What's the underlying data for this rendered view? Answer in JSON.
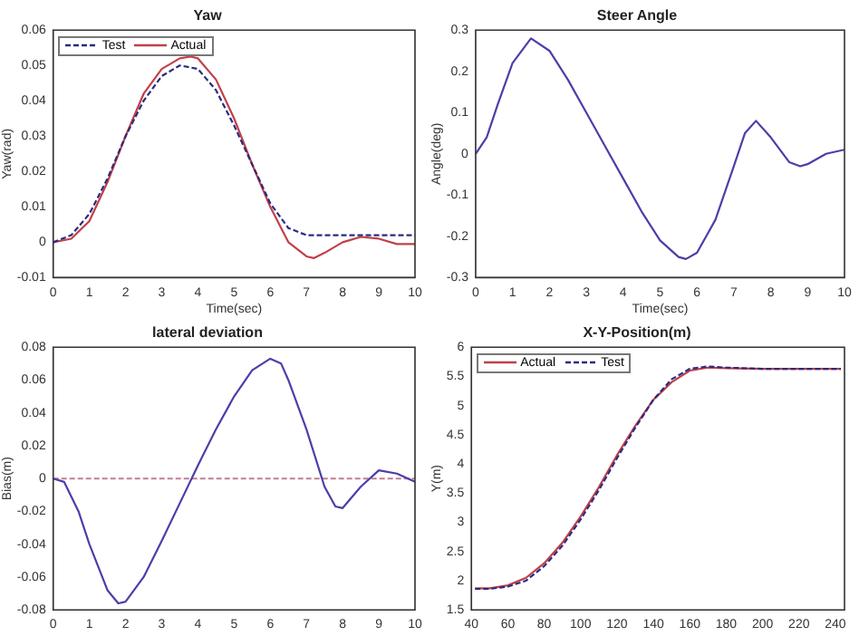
{
  "chart_data": [
    {
      "type": "line",
      "title": "Yaw",
      "xlabel": "Time(sec)",
      "ylabel": "Yaw(rad)",
      "xlim": [
        0,
        10
      ],
      "xticks": [
        0,
        1,
        2,
        3,
        4,
        5,
        6,
        7,
        8,
        9,
        10
      ],
      "ylim": [
        -0.01,
        0.06
      ],
      "yticks": [
        -0.01,
        0,
        0.01,
        0.02,
        0.03,
        0.04,
        0.05,
        0.06
      ],
      "legend": "top left",
      "grid": false,
      "marker": "none",
      "series": [
        {
          "name": "Test",
          "color": "#2b2b80",
          "line_style": "dashed",
          "x": [
            0,
            0.5,
            1,
            1.5,
            2,
            2.5,
            3,
            3.5,
            4,
            4.5,
            5,
            5.5,
            6,
            6.5,
            7,
            8,
            9,
            10
          ],
          "values": [
            0,
            0.002,
            0.008,
            0.018,
            0.03,
            0.04,
            0.047,
            0.05,
            0.049,
            0.043,
            0.033,
            0.022,
            0.011,
            0.004,
            0.002,
            0.002,
            0.002,
            0.002
          ]
        },
        {
          "name": "Actual",
          "color": "#c0404a",
          "line_style": "solid",
          "x": [
            0,
            0.5,
            1,
            1.5,
            2,
            2.5,
            3,
            3.5,
            3.8,
            4,
            4.5,
            5,
            5.5,
            6,
            6.5,
            7,
            7.2,
            7.5,
            8,
            8.5,
            9,
            9.5,
            10
          ],
          "values": [
            0,
            0.001,
            0.006,
            0.017,
            0.03,
            0.042,
            0.049,
            0.052,
            0.0525,
            0.052,
            0.046,
            0.035,
            0.022,
            0.01,
            0,
            -0.004,
            -0.0045,
            -0.003,
            0,
            0.0015,
            0.001,
            -0.0005,
            -0.0005
          ]
        }
      ]
    },
    {
      "type": "line",
      "title": "Steer Angle",
      "xlabel": "Time(sec)",
      "ylabel": "Angle(deg)",
      "xlim": [
        0,
        10
      ],
      "xticks": [
        0,
        1,
        2,
        3,
        4,
        5,
        6,
        7,
        8,
        9,
        10
      ],
      "ylim": [
        -0.3,
        0.3
      ],
      "yticks": [
        -0.3,
        -0.2,
        -0.1,
        0,
        0.1,
        0.2,
        0.3
      ],
      "grid": false,
      "marker": "none",
      "series": [
        {
          "color": "#4a3fa8",
          "line_style": "solid",
          "x": [
            0,
            0.3,
            0.6,
            1,
            1.5,
            2,
            2.5,
            3,
            3.5,
            4,
            4.5,
            5,
            5.5,
            5.7,
            6,
            6.5,
            7,
            7.3,
            7.6,
            8,
            8.5,
            8.8,
            9,
            9.5,
            10
          ],
          "values": [
            0,
            0.04,
            0.12,
            0.22,
            0.28,
            0.25,
            0.18,
            0.1,
            0.02,
            -0.06,
            -0.14,
            -0.21,
            -0.25,
            -0.255,
            -0.24,
            -0.16,
            -0.03,
            0.05,
            0.08,
            0.04,
            -0.02,
            -0.03,
            -0.025,
            0,
            0.01
          ]
        }
      ]
    },
    {
      "type": "line",
      "title": "lateral deviation",
      "ylabel": "Bias(m)",
      "xlim": [
        0,
        10
      ],
      "xticks": [
        0,
        1,
        2,
        3,
        4,
        5,
        6,
        7,
        8,
        9,
        10
      ],
      "ylim": [
        -0.08,
        0.08
      ],
      "yticks": [
        -0.08,
        -0.06,
        -0.04,
        -0.02,
        0,
        0.02,
        0.04,
        0.06,
        0.08
      ],
      "grid": false,
      "marker": "none",
      "ref_lines": [
        {
          "axis": "y",
          "value": 0,
          "color": "#c08090",
          "line_style": "dashed"
        }
      ],
      "series": [
        {
          "color": "#4a3fa8",
          "line_style": "solid",
          "x": [
            0,
            0.3,
            0.7,
            1,
            1.5,
            1.8,
            2,
            2.5,
            3,
            3.5,
            4,
            4.5,
            5,
            5.5,
            6,
            6.3,
            6.5,
            7,
            7.5,
            7.8,
            8,
            8.5,
            9,
            9.5,
            10
          ],
          "values": [
            0,
            -0.002,
            -0.02,
            -0.04,
            -0.068,
            -0.076,
            -0.075,
            -0.06,
            -0.038,
            -0.015,
            0.008,
            0.03,
            0.05,
            0.066,
            0.073,
            0.07,
            0.06,
            0.03,
            -0.005,
            -0.017,
            -0.018,
            -0.005,
            0.005,
            0.003,
            -0.002
          ]
        }
      ]
    },
    {
      "type": "line",
      "title": "X-Y-Position(m)",
      "ylabel": "Y(m)",
      "xlim": [
        40,
        245
      ],
      "xticks": [
        40,
        60,
        80,
        100,
        120,
        140,
        160,
        180,
        200,
        220,
        240
      ],
      "ylim": [
        1.5,
        6
      ],
      "yticks": [
        1.5,
        2,
        2.5,
        3,
        3.5,
        4,
        4.5,
        5,
        5.5,
        6
      ],
      "legend": "top left",
      "grid": false,
      "marker": "none",
      "series": [
        {
          "name": "Actual",
          "color": "#c0404a",
          "line_style": "solid",
          "x": [
            42,
            50,
            60,
            70,
            80,
            90,
            100,
            110,
            120,
            130,
            140,
            150,
            160,
            170,
            180,
            200,
            243
          ],
          "values": [
            1.87,
            1.87,
            1.92,
            2.05,
            2.3,
            2.65,
            3.1,
            3.6,
            4.15,
            4.65,
            5.1,
            5.4,
            5.6,
            5.65,
            5.64,
            5.63,
            5.63
          ]
        },
        {
          "name": "Test",
          "color": "#2b2b80",
          "line_style": "dashed",
          "x": [
            42,
            50,
            60,
            70,
            80,
            90,
            100,
            110,
            120,
            130,
            140,
            150,
            160,
            170,
            180,
            200,
            243
          ],
          "values": [
            1.86,
            1.86,
            1.9,
            2,
            2.25,
            2.6,
            3.05,
            3.55,
            4.1,
            4.62,
            5.1,
            5.45,
            5.63,
            5.67,
            5.65,
            5.63,
            5.63
          ]
        }
      ]
    }
  ]
}
